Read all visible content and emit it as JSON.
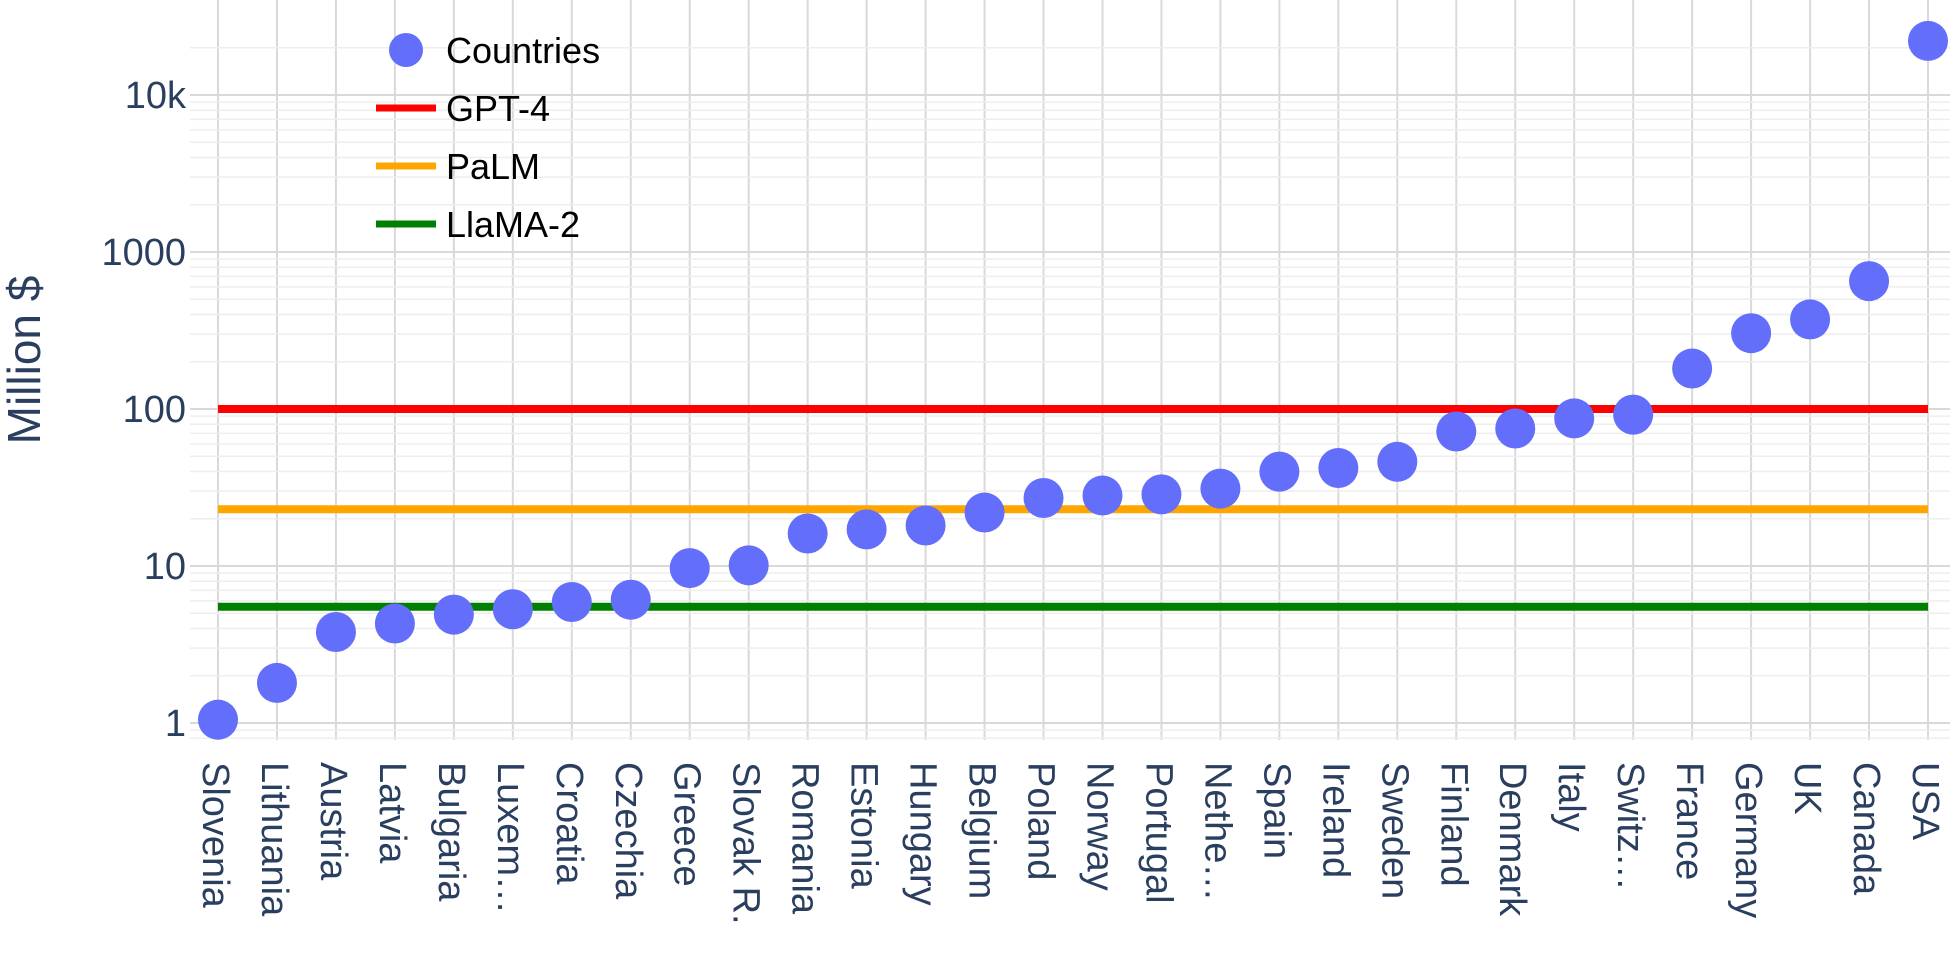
{
  "chart_data": {
    "type": "scatter",
    "ylabel": "Million $",
    "y_scale": "log",
    "ylim": [
      0.8,
      20000
    ],
    "grid": true,
    "legend_position": "top-left",
    "y_ticks": [
      {
        "value": 1,
        "label": "1"
      },
      {
        "value": 10,
        "label": "10"
      },
      {
        "value": 100,
        "label": "100"
      },
      {
        "value": 1000,
        "label": "1000"
      },
      {
        "value": 10000,
        "label": "10k"
      }
    ],
    "categories": [
      "Slovenia",
      "Lithuania",
      "Austria",
      "Latvia",
      "Bulgaria",
      "Luxem…",
      "Croatia",
      "Czechia",
      "Greece",
      "Slovak R.",
      "Romania",
      "Estonia",
      "Hungary",
      "Belgium",
      "Poland",
      "Norway",
      "Portugal",
      "Nethe…",
      "Spain",
      "Ireland",
      "Sweden",
      "Finland",
      "Denmark",
      "Italy",
      "Switz…",
      "France",
      "Germany",
      "UK",
      "Canada",
      "USA"
    ],
    "series": [
      {
        "name": "Countries",
        "mode": "markers",
        "color": "#636efa",
        "values": [
          1.05,
          1.8,
          3.8,
          4.3,
          4.9,
          5.3,
          5.9,
          6.1,
          9.7,
          10.1,
          16.1,
          17.1,
          18.1,
          21.9,
          27.1,
          28.1,
          28.6,
          31.1,
          39.9,
          42.1,
          46.1,
          71.9,
          75.1,
          87.1,
          92.1,
          181,
          304,
          372,
          652,
          22100
        ]
      },
      {
        "name": "GPT-4",
        "mode": "hline",
        "color": "#ff0000",
        "value": 100
      },
      {
        "name": "PaLM",
        "mode": "hline",
        "color": "#ffa500",
        "value": 23
      },
      {
        "name": "LlaMA-2",
        "mode": "hline",
        "color": "#008000",
        "value": 5.5
      }
    ]
  }
}
